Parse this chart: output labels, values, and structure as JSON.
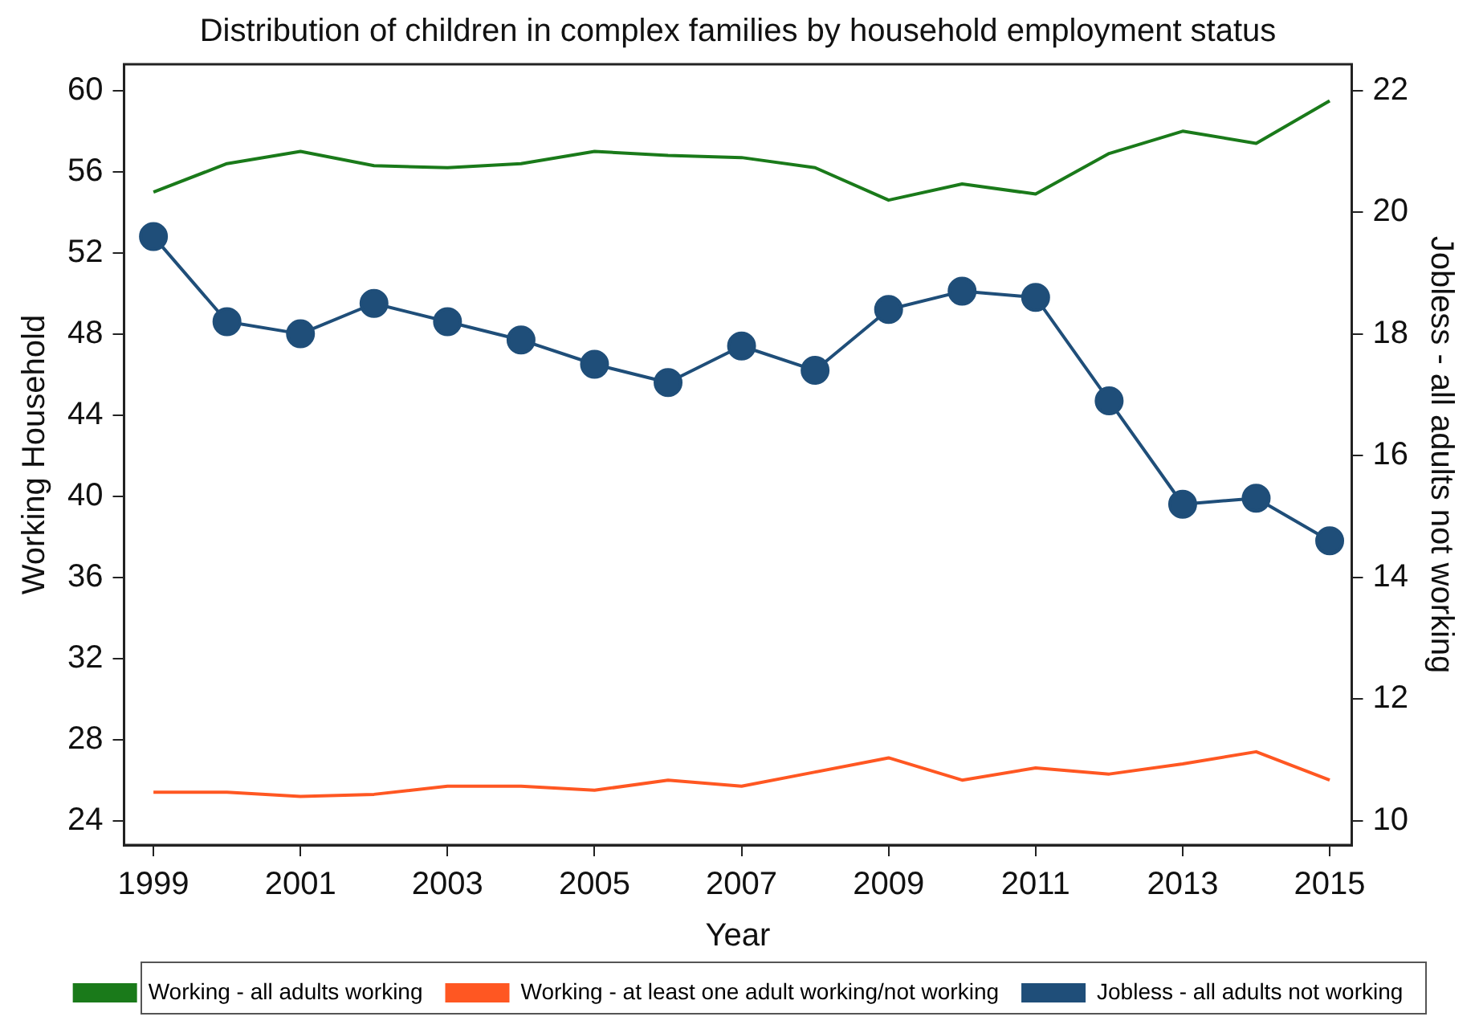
{
  "chart_data": {
    "type": "line",
    "title": "Distribution of children in complex families by household employment status",
    "xlabel": "Year",
    "ylabel": "Working Household",
    "y2label": "Jobless - all adults not working",
    "x": [
      1999,
      2000,
      2001,
      2002,
      2003,
      2004,
      2005,
      2006,
      2007,
      2008,
      2009,
      2010,
      2011,
      2012,
      2013,
      2014,
      2015
    ],
    "xlim": [
      1998.6,
      2015.3
    ],
    "xticks": [
      1999,
      2001,
      2003,
      2005,
      2007,
      2009,
      2011,
      2013,
      2015
    ],
    "ylim": [
      22.8,
      61.3
    ],
    "yticks": [
      24,
      28,
      32,
      36,
      40,
      44,
      48,
      52,
      56,
      60
    ],
    "y2lim": [
      9.6,
      22.43
    ],
    "y2ticks": [
      10,
      12,
      14,
      16,
      18,
      20,
      22
    ],
    "grid": false,
    "legend": "bottom",
    "series": [
      {
        "name": "Working - all adults working",
        "color": "#1a7a1a",
        "marker": "none",
        "values": [
          55.0,
          56.4,
          57.0,
          56.3,
          56.2,
          56.4,
          57.0,
          56.8,
          56.7,
          56.2,
          54.6,
          55.4,
          54.9,
          56.9,
          58.0,
          57.4,
          59.5
        ]
      },
      {
        "name": "Working - at least one adult working/not working",
        "color": "#ff5722",
        "marker": "none",
        "values": [
          25.4,
          25.4,
          25.2,
          25.3,
          25.7,
          25.7,
          25.5,
          26.0,
          25.7,
          26.4,
          27.1,
          26.0,
          26.6,
          26.3,
          26.8,
          27.4,
          26.0
        ]
      },
      {
        "name": "Jobless - all adults not working",
        "color": "#1f4e79",
        "marker": "circle",
        "axis": "y2",
        "values": [
          19.6,
          18.2,
          18.0,
          18.5,
          18.2,
          17.9,
          17.5,
          17.2,
          17.8,
          17.4,
          18.4,
          18.7,
          18.6,
          16.9,
          15.2,
          15.3,
          14.6
        ]
      }
    ]
  }
}
